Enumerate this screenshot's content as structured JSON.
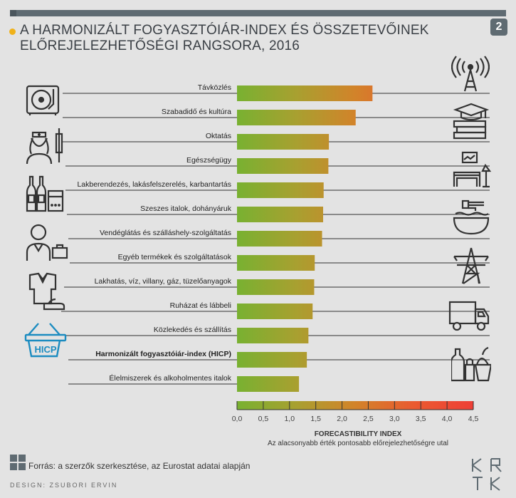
{
  "header": {
    "title_line1": "A HARMONIZÁLT FOGYASZTÓIÁR-INDEX ÉS ÖSSZETEVŐINEK",
    "title_line2": "ELŐREJELEZHETŐSÉGI RANGSORA, 2016",
    "page_badge": "2"
  },
  "chart_data": {
    "type": "bar",
    "orientation": "horizontal",
    "categories": [
      "Távközlés",
      "Szabadidő és kultúra",
      "Oktatás",
      "Egészségügy",
      "Lakberendezés, lakásfelszerelés, karbantartás",
      "Szeszes italok, dohányáruk",
      "Vendéglátás és szálláshely-szolgáltatás",
      "Egyéb termékek és szolgáltatások",
      "Lakhatás, víz, villany, gáz, tüzelőanyagok",
      "Ruházat és lábbeli",
      "Közlekedés és szállítás",
      "Harmonizált fogyasztóiár-index (HICP)",
      "Élelmiszerek és alkoholmentes italok"
    ],
    "values": [
      2.58,
      2.26,
      1.75,
      1.74,
      1.65,
      1.64,
      1.62,
      1.48,
      1.47,
      1.44,
      1.36,
      1.33,
      1.18
    ],
    "highlight_index": 11,
    "xlim": [
      0,
      4.5
    ],
    "xticks": [
      "0,0",
      "0,5",
      "1,0",
      "1,5",
      "2,0",
      "2,5",
      "3,0",
      "3,5",
      "4,0",
      "4,5"
    ],
    "xlabel": "FORECASTIBILITY INDEX",
    "xlabel_sub": "Az alacsonyabb érték pontosabb előrejelezhetőségre utal",
    "gradient_colors": [
      "#78b131",
      "#a8a030",
      "#d2832a",
      "#ea5a30",
      "#ef3f36"
    ]
  },
  "icons": {
    "left": [
      "record-player-icon",
      "nurse-syringe-icon",
      "bottles-cigarettes-icon",
      "waiter-icon",
      "clothes-shoe-icon",
      "hicp-basket-icon"
    ],
    "right": [
      "antenna-icon",
      "books-graduation-icon",
      "living-room-icon",
      "bowl-noodles-icon",
      "power-pylon-icon",
      "truck-icon",
      "groceries-icon"
    ],
    "hicp_label": "HICP"
  },
  "footer": {
    "source": "Forrás: a szerzők szerkesztése, az Eurostat adatai alapján",
    "design": "DESIGN: ZSUBORI ERVIN",
    "logo": [
      "K",
      "R",
      "T",
      "K"
    ]
  }
}
